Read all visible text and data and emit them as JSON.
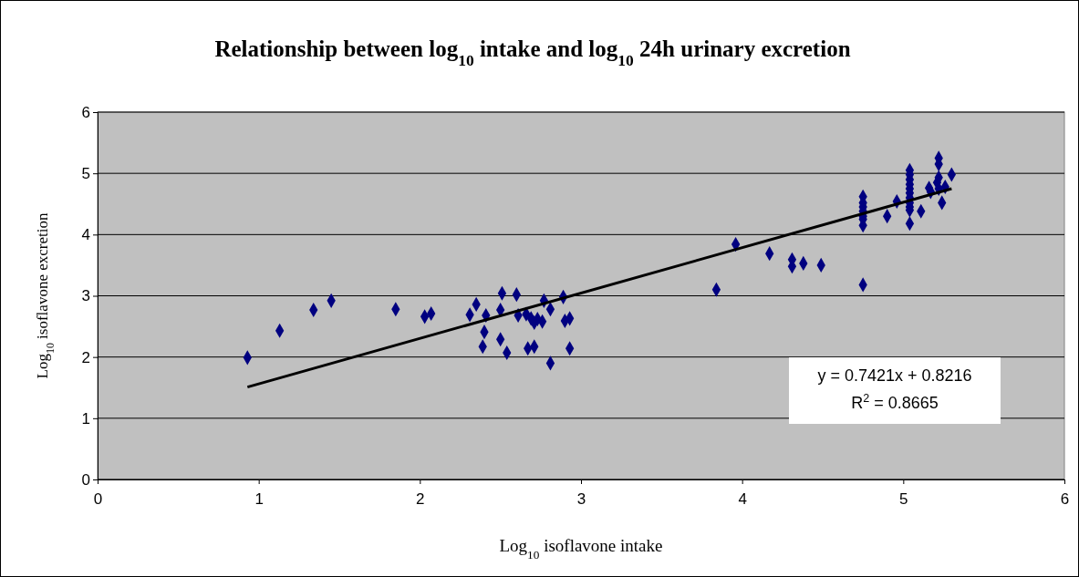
{
  "chart_data": {
    "type": "scatter",
    "title": "Relationship between log$_{10}$ intake and log$_{10}$ 24h urinary excretion",
    "xlabel": "Log$_{10}$ isoflavone intake",
    "ylabel": "Log$_{10}$ isoflavone excretion",
    "xlim": [
      0,
      6
    ],
    "xticks": [
      0,
      1,
      2,
      3,
      4,
      5,
      6
    ],
    "ylim": [
      0,
      6
    ],
    "yticks": [
      0,
      1,
      2,
      3,
      4,
      5,
      6
    ],
    "grid": "y",
    "annotations": [
      "y = 0.7421x + 0.8216",
      "R$^{2}$ = 0.8665"
    ],
    "series": [
      {
        "marker": "diamond",
        "color": "#000080",
        "x": [
          0.93,
          1.13,
          1.34,
          1.45,
          1.85,
          2.03,
          2.07,
          2.31,
          2.35,
          2.41,
          2.4,
          2.39,
          2.5,
          2.51,
          2.5,
          2.54,
          2.6,
          2.61,
          2.66,
          2.69,
          2.71,
          2.73,
          2.67,
          2.71,
          2.76,
          2.77,
          2.81,
          2.81,
          2.89,
          2.9,
          2.93,
          2.93,
          3.84,
          3.96,
          4.17,
          4.31,
          4.31,
          4.38,
          4.49,
          4.75,
          4.75,
          4.75,
          4.75,
          4.75,
          4.75,
          4.75,
          4.75,
          4.9,
          4.96,
          5.04,
          5.04,
          5.04,
          5.04,
          5.04,
          5.04,
          5.04,
          5.04,
          5.04,
          5.04,
          5.04,
          5.11,
          5.16,
          5.17,
          5.22,
          5.22,
          5.22,
          5.22,
          5.24,
          5.3,
          5.21,
          5.26
        ],
        "values": [
          1.99,
          2.43,
          2.77,
          2.92,
          2.78,
          2.66,
          2.71,
          2.69,
          2.86,
          2.68,
          2.41,
          2.17,
          2.29,
          3.04,
          2.77,
          2.07,
          3.02,
          2.68,
          2.7,
          2.63,
          2.56,
          2.62,
          2.14,
          2.17,
          2.58,
          2.92,
          2.78,
          1.9,
          2.98,
          2.59,
          2.63,
          2.14,
          3.1,
          3.84,
          3.69,
          3.59,
          3.48,
          3.53,
          3.5,
          3.18,
          4.62,
          4.52,
          4.45,
          4.38,
          4.3,
          4.25,
          4.15,
          4.3,
          4.54,
          5.05,
          4.98,
          4.9,
          4.82,
          4.75,
          4.68,
          4.6,
          4.52,
          4.45,
          4.4,
          4.18,
          4.38,
          4.76,
          4.7,
          5.25,
          5.15,
          4.93,
          4.75,
          4.52,
          4.98,
          4.85,
          4.78
        ]
      },
      {
        "type": "line",
        "marker": "none",
        "color": "#000000",
        "x": [
          0.93,
          5.3
        ],
        "values": [
          1.51,
          4.75
        ]
      }
    ]
  }
}
